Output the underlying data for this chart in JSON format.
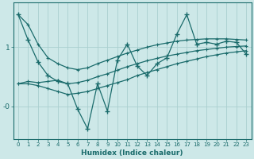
{
  "xlabel": "Humidex (Indice chaleur)",
  "xlim": [
    -0.5,
    23.5
  ],
  "ylim": [
    -0.55,
    1.75
  ],
  "yticks": [
    0.0,
    1.0
  ],
  "ytick_labels": [
    "-0",
    "1"
  ],
  "xticks": [
    0,
    1,
    2,
    3,
    4,
    5,
    6,
    7,
    8,
    9,
    10,
    11,
    12,
    13,
    14,
    15,
    16,
    17,
    18,
    19,
    20,
    21,
    22,
    23
  ],
  "bg_color": "#cde8e8",
  "line_color": "#1a6b6b",
  "grid_color": "#aacfcf",
  "series": {
    "zigzag": [
      1.55,
      1.12,
      0.75,
      0.52,
      0.42,
      0.38,
      -0.05,
      -0.38,
      0.38,
      -0.08,
      0.78,
      1.05,
      0.68,
      0.52,
      0.72,
      0.82,
      1.22,
      1.55,
      1.05,
      1.08,
      1.05,
      1.1,
      1.08,
      0.88
    ],
    "upper_line": [
      1.55,
      1.38,
      1.05,
      0.82,
      0.72,
      0.65,
      0.62,
      0.65,
      0.72,
      0.78,
      0.84,
      0.9,
      0.95,
      1.0,
      1.04,
      1.07,
      1.1,
      1.12,
      1.13,
      1.14,
      1.14,
      1.14,
      1.13,
      1.12
    ],
    "lower_line": [
      0.38,
      0.38,
      0.35,
      0.3,
      0.25,
      0.2,
      0.22,
      0.25,
      0.3,
      0.35,
      0.4,
      0.45,
      0.52,
      0.57,
      0.62,
      0.67,
      0.72,
      0.76,
      0.8,
      0.84,
      0.87,
      0.9,
      0.92,
      0.94
    ],
    "mid_line": [
      0.38,
      0.42,
      0.4,
      0.42,
      0.44,
      0.38,
      0.4,
      0.44,
      0.5,
      0.55,
      0.61,
      0.67,
      0.72,
      0.77,
      0.81,
      0.85,
      0.88,
      0.91,
      0.94,
      0.96,
      0.98,
      1.0,
      1.01,
      1.02
    ]
  }
}
